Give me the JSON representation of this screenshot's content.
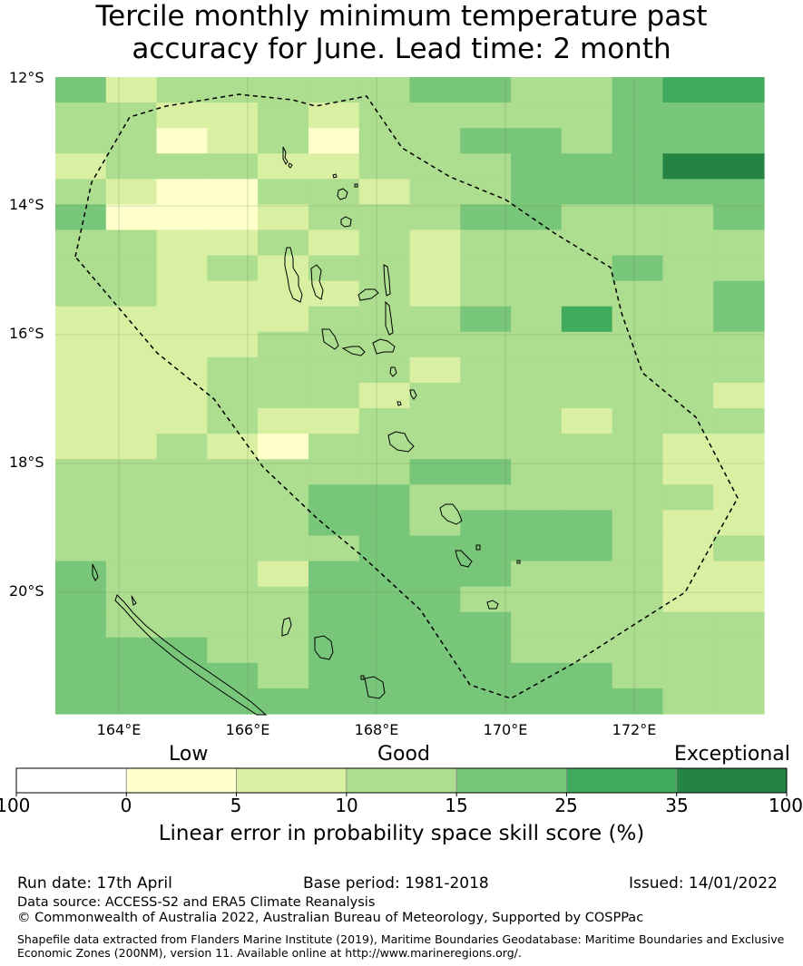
{
  "title_line1": "Tercile monthly minimum temperature past",
  "title_line2": "accuracy for June. Lead time: 2 month",
  "map": {
    "lat_labels": [
      "12°S",
      "14°S",
      "16°S",
      "18°S",
      "20°S"
    ],
    "lon_labels": [
      "164°E",
      "166°E",
      "168°E",
      "170°E",
      "172°E"
    ],
    "lat_range": [
      -12,
      -21.9
    ],
    "lon_range": [
      163,
      174
    ],
    "grid": "on",
    "cell_rows": [
      "31222223322344",
      "22112122222333",
      "22012022332333",
      "12221122233355",
      "21002212233333",
      "30001222332223",
      "22112121222222",
      "22121221222322",
      "22111121222223",
      "11111222324223",
      "11112222222222",
      "11122221222222",
      "11122212222221",
      "11121122221222",
      "11210222222211",
      "22222223322211",
      "22222332222221",
      "22222332333211",
      "22222233333212",
      "32221333322211",
      "32222333222211",
      "32222333322222",
      "33322333322222",
      "33332333333222",
      "33333333333322"
    ],
    "boundary_style": "dashed EEZ boundary"
  },
  "colorbar": {
    "categories": [
      "Low",
      "Good",
      "Exceptional"
    ],
    "ticks": [
      "-100",
      "0",
      "5",
      "10",
      "15",
      "25",
      "35",
      "100"
    ],
    "colors": [
      "#ffffff",
      "#ffffcc",
      "#d9f0a3",
      "#addd8e",
      "#78c679",
      "#41ab5d",
      "#238443"
    ],
    "label": "Linear error in probability space skill score (%)"
  },
  "footer": {
    "run_date": "Run date: 17th April",
    "base_period": "Base period: 1981-2018",
    "issued": "Issued: 14/01/2022",
    "data_source": "Data source: ACCESS-S2 and ERA5 Climate Reanalysis",
    "copyright": "© Commonwealth of Australia 2022, Australian Bureau of Meteorology, Supported by COSPPac",
    "shapefile_line1": "Shapefile data extracted from Flanders Marine Institute (2019), Maritime Boundaries Geodatabase: Maritime Boundaries and Exclusive",
    "shapefile_line2": "Economic Zones (200NM), version 11. Available online at http://www.marineregions.org/."
  }
}
